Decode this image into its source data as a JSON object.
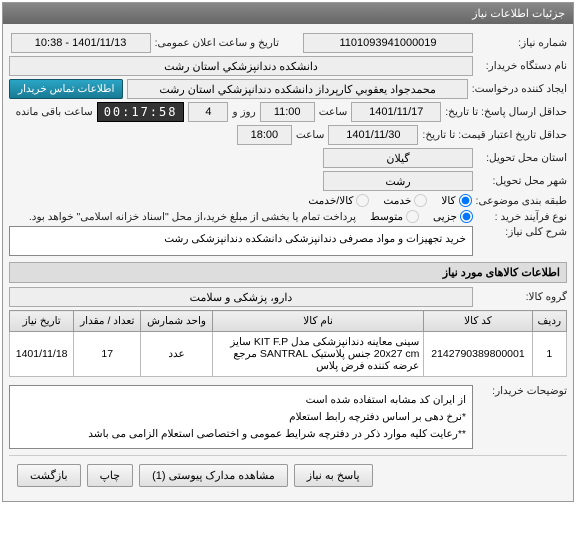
{
  "panel": {
    "title": "جزئیات اطلاعات نیاز"
  },
  "contact_btn": "اطلاعات تماس خریدار",
  "fields": {
    "need_no_label": "شماره نیاز:",
    "need_no": "1101093941000019",
    "announce_label": "تاریخ و ساعت اعلان عمومی:",
    "announce_val": "1401/11/13 - 10:38",
    "buyer_org_label": "نام دستگاه خریدار:",
    "buyer_org": "دانشکده دندانپزشکي استان رشت",
    "creator_label": "ایجاد کننده درخواست:",
    "creator": "محمدجواد یعقوبي کارپرداز دانشکده دندانپزشکي استان رشت",
    "deadline_label": "حداقل ارسال پاسخ: تا تاریخ:",
    "deadline_date": "1401/11/17",
    "time_label": "ساعت",
    "deadline_time": "11:00",
    "dayroom_label": "روز و",
    "days_val": "4",
    "remain_label": "ساعت باقی مانده",
    "counter": "00:17:58",
    "validity_label": "حداقل تاریخ اعتبار قیمت: تا تاریخ:",
    "validity_date": "1401/11/30",
    "validity_time": "18:00",
    "province_label": "استان محل تحویل:",
    "province": "گیلان",
    "city_label": "شهر محل تحویل:",
    "city": "رشت",
    "category_label": "طبقه بندی موضوعی:",
    "cat_opts": {
      "goods": "کالا",
      "service": "خدمت",
      "both": "کالا/خدمت"
    },
    "process_label": "نوع فرآیند خرید :",
    "proc_opts": {
      "small": "جزیی",
      "medium": "متوسط"
    },
    "process_note": "پرداخت تمام یا بخشی از مبلغ خرید،از محل \"اسناد خزانه اسلامی\" خواهد بود.",
    "summary_label": "شرح کلی نیاز:",
    "summary": "خرید تجهیزات و مواد مصرفی دندانپزشکی دانشکده دندانپزشکی رشت"
  },
  "sub1": "اطلاعات کالاهای مورد نیاز",
  "group_label": "گروه کالا:",
  "group_val": "دارو، پزشکی و سلامت",
  "table": {
    "cols": [
      "ردیف",
      "کد کالا",
      "نام کالا",
      "واحد شمارش",
      "تعداد / مقدار",
      "تاریخ نیاز"
    ],
    "rows": [
      [
        "1",
        "2142790389800001",
        "سینی معاینه دندانپزشکی مدل KIT F.P سایز 20x27 cm جنس پلاستیک SANTRAL مرجع عرضه کننده فرض پلاس",
        "عدد",
        "17",
        "1401/11/18"
      ]
    ]
  },
  "buyer_notes_label": "توضیحات خریدار:",
  "buyer_notes": "از ایران کد مشابه استفاده شده است\n*نرخ دهی بر اساس دفترچه رابط استعلام\n**رعایت کلیه موارد ذکر در دفترچه شرایط عمومی و اختصاصی استعلام الزامی می باشد",
  "footer": {
    "reply": "پاسخ به نیاز",
    "attach": "مشاهده مدارک پیوستی  (1)",
    "print": "چاپ",
    "back": "بازگشت"
  },
  "colors": {
    "header_bg": "#777",
    "accent": "#1a8fb3"
  }
}
